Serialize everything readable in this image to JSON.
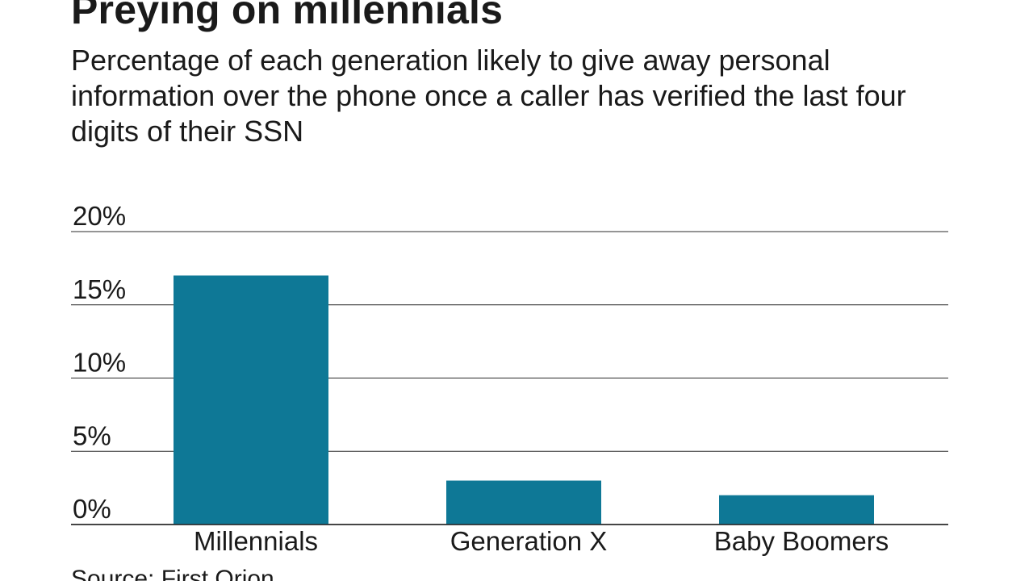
{
  "chart_data": {
    "type": "bar",
    "title": "Preying on millennials",
    "subtitle": "Percentage of each generation likely to give away personal information over the phone once a caller has verified the last four digits of their SSN",
    "categories": [
      "Millennials",
      "Generation X",
      "Baby Boomers"
    ],
    "values": [
      17,
      3,
      2
    ],
    "unit": "%",
    "ylim": [
      0,
      20
    ],
    "yticks": [
      0,
      5,
      10,
      15,
      20
    ],
    "ytick_labels": [
      "0%",
      "5%",
      "10%",
      "15%",
      "20%"
    ],
    "xlabel": "",
    "ylabel": "",
    "grid": true,
    "legend": "none",
    "bar_color": "#0e7896",
    "gridline_color": "#2b2b2b",
    "source": "Source: First Orion"
  }
}
